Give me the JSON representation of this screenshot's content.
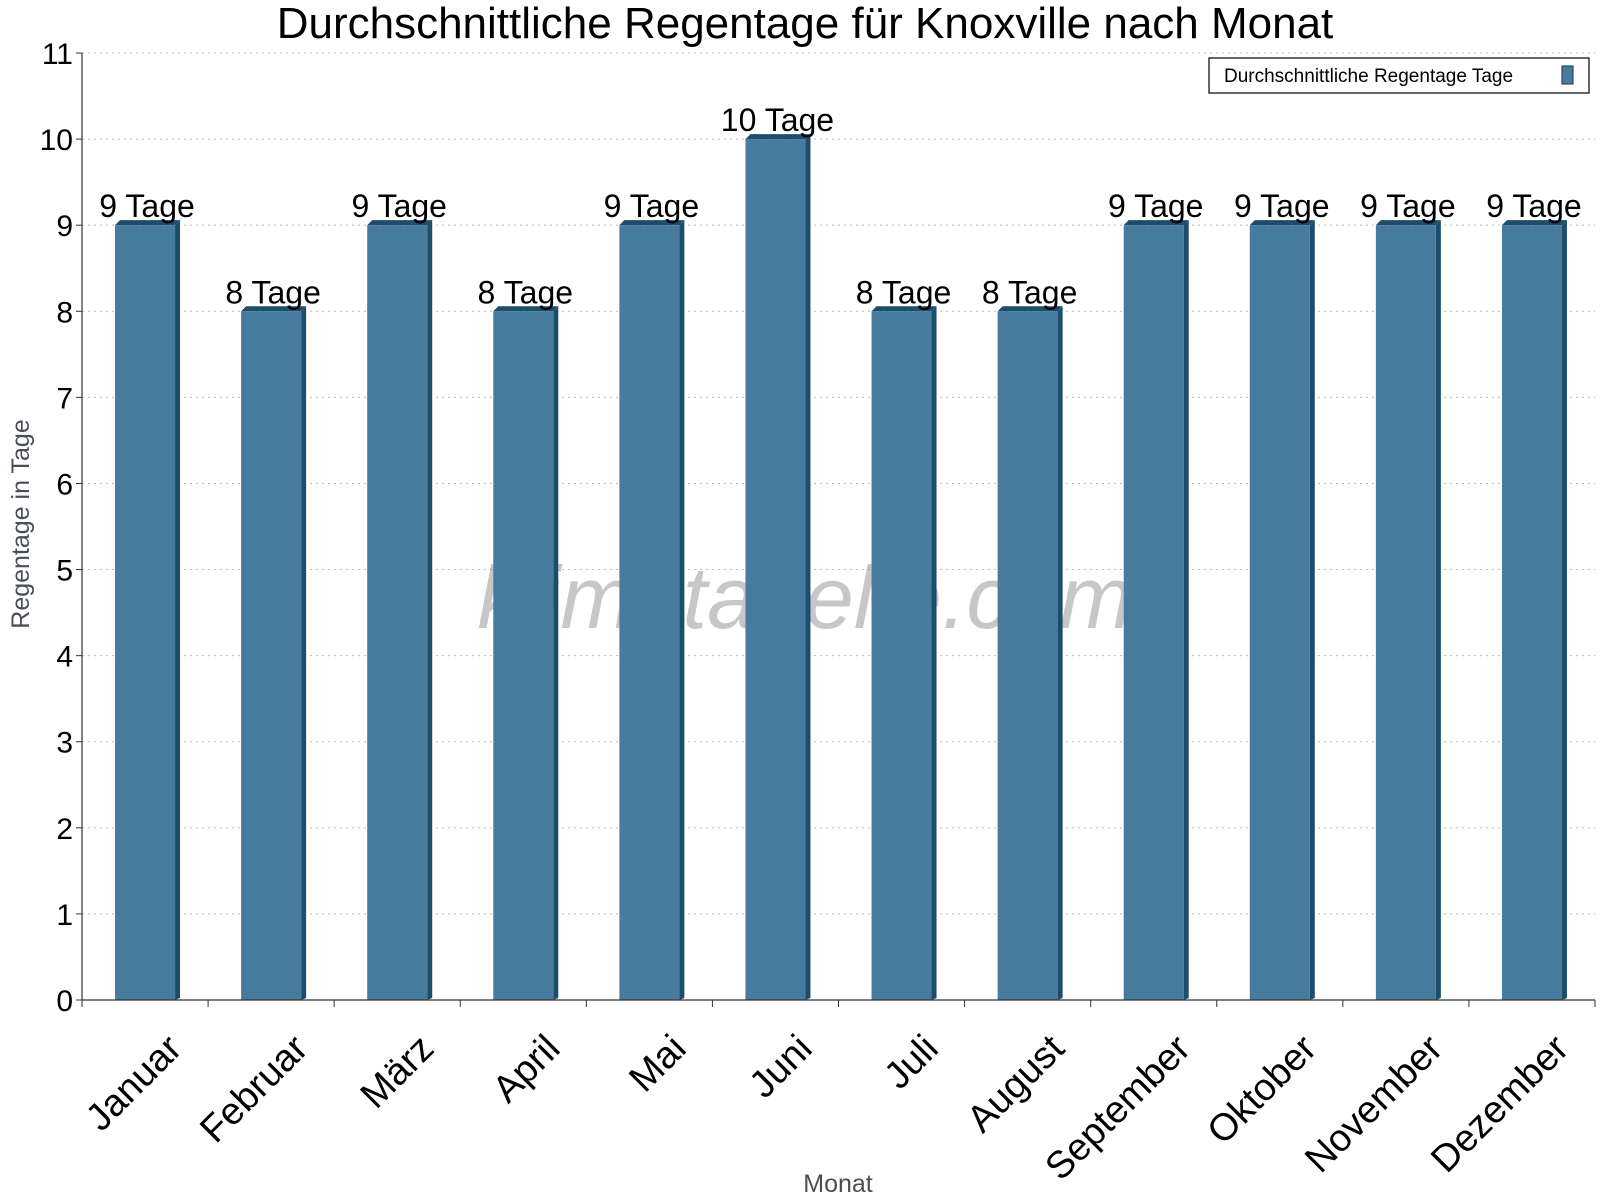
{
  "chart_data": {
    "type": "bar",
    "title": "Durchschnittliche Regentage für Knoxville nach Monat",
    "xlabel": "Monat",
    "ylabel": "Regentage in Tage",
    "categories": [
      "Januar",
      "Februar",
      "März",
      "April",
      "Mai",
      "Juni",
      "Juli",
      "August",
      "September",
      "Oktober",
      "November",
      "Dezember"
    ],
    "series": [
      {
        "name": "Durchschnittliche Regentage Tage",
        "values": [
          9,
          8,
          9,
          8,
          9,
          10,
          8,
          8,
          9,
          9,
          9,
          9
        ],
        "data_labels": [
          "9 Tage",
          "8 Tage",
          "9 Tage",
          "8 Tage",
          "9 Tage",
          "10 Tage",
          "8 Tage",
          "8 Tage",
          "9 Tage",
          "9 Tage",
          "9 Tage",
          "9 Tage"
        ]
      }
    ],
    "ylim": [
      0,
      11
    ],
    "yticks": [
      "0",
      "1",
      "2",
      "3",
      "4",
      "5",
      "6",
      "7",
      "8",
      "9",
      "10",
      "11"
    ],
    "grid": true,
    "legend_position": "top-right",
    "colors": {
      "bar": "#467b9d",
      "bar_side": "#1e4d6b",
      "grid": "#bbbbbb",
      "axis": "#333333"
    },
    "watermark": "klimatabelle.com"
  }
}
